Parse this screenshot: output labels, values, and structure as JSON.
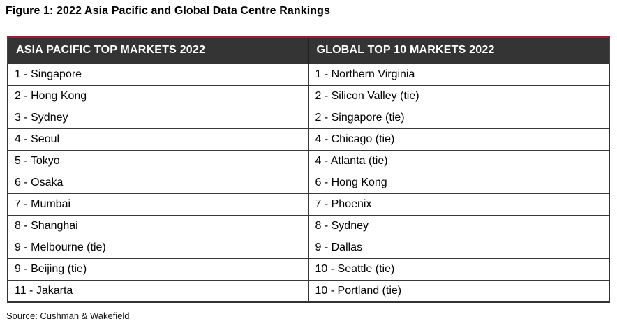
{
  "figure": {
    "title": "Figure 1: 2022 Asia Pacific and Global Data Centre Rankings",
    "source": "Source: Cushman & Wakefield"
  },
  "table": {
    "columns": [
      {
        "header": "ASIA PACIFIC TOP MARKETS 2022",
        "rows": [
          "1 - Singapore",
          "2 - Hong Kong",
          "3 - Sydney",
          "4 - Seoul",
          "5 - Tokyo",
          "6 - Osaka",
          "7 - Mumbai",
          "8 - Shanghai",
          "9 - Melbourne (tie)",
          "9 - Beijing (tie)",
          "11 - Jakarta"
        ]
      },
      {
        "header": "GLOBAL TOP 10 MARKETS 2022",
        "rows": [
          "1 - Northern Virginia",
          "2 - Silicon Valley (tie)",
          "2 - Singapore (tie)",
          "4 - Chicago (tie)",
          "4 - Atlanta (tie)",
          "6 - Hong Kong",
          "7 - Phoenix",
          "8 - Sydney",
          "9 - Dallas",
          "10 - Seattle (tie)",
          "10 - Portland (tie)"
        ]
      }
    ]
  },
  "colors": {
    "header_bg": "#343434",
    "header_text": "#ffffff",
    "accent_border": "#9e1b32",
    "cell_border": "#333333",
    "text_color": "#000000"
  }
}
